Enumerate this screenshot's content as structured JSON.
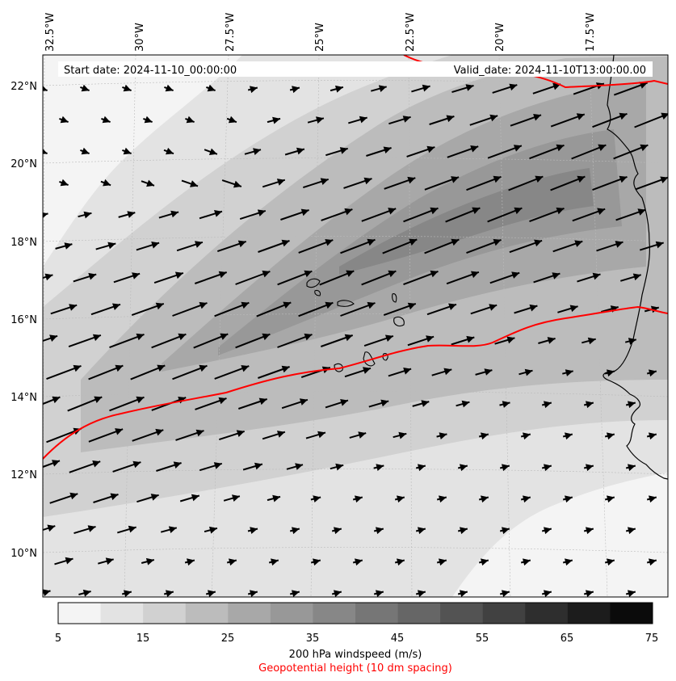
{
  "header": {
    "start_date": "Start date: 2024-11-10_00:00:00",
    "valid_date": "Valid_date: 2024-11-10T13:00:00.00"
  },
  "longitude_labels": [
    "32.5°W",
    "30°W",
    "27.5°W",
    "25°W",
    "22.5°W",
    "20°W",
    "17.5°W"
  ],
  "latitude_labels": [
    "22°N",
    "20°N",
    "18°N",
    "16°N",
    "14°N",
    "12°N",
    "10°N"
  ],
  "colorbar": {
    "tick_labels": [
      "5",
      "15",
      "25",
      "35",
      "45",
      "55",
      "65",
      "75"
    ],
    "levels": [
      5,
      10,
      15,
      20,
      25,
      30,
      35,
      40,
      45,
      50,
      55,
      60,
      65,
      70,
      75
    ],
    "colors": [
      "#f4f4f4",
      "#e3e3e3",
      "#d1d1d1",
      "#bcbcbc",
      "#a8a8a8",
      "#989898",
      "#878787",
      "#767676",
      "#666666",
      "#535353",
      "#414141",
      "#2e2e2e",
      "#1c1c1c",
      "#0b0b0b"
    ],
    "title": "200 hPa windspeed (m/s)",
    "subtitle": "Geopotential height (10 dm spacing)"
  },
  "colors": {
    "contour_line": "#ff0000",
    "coastline": "#000000",
    "arrows": "#000000"
  }
}
